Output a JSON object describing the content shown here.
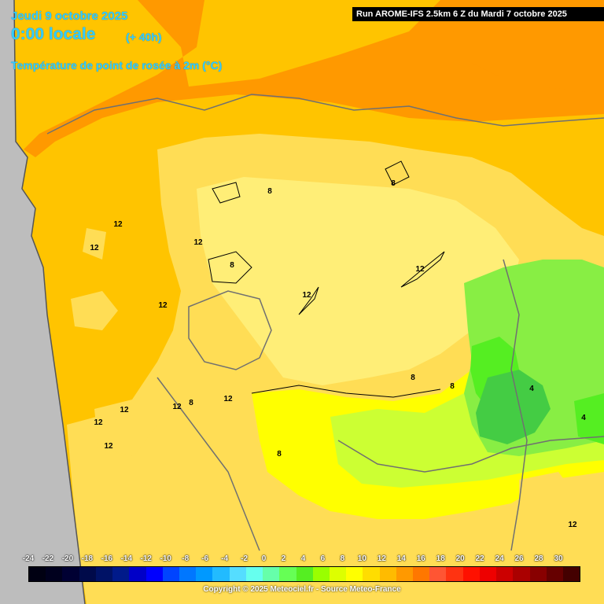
{
  "header": {
    "date_title": "Jeudi 9 octobre 2025",
    "local_time": "0:00 locale",
    "lead_time": "(+ 40h)",
    "parameter_title": "Température de point de rosée à 2m (°C)",
    "run_info": "Run AROME-IFS 2.5km 6 Z du Mardi 7 octobre 2025"
  },
  "legend": {
    "ticks": [
      "-24",
      "-22",
      "-20",
      "-18",
      "-16",
      "-14",
      "-12",
      "-10",
      "-8",
      "-6",
      "-4",
      "-2",
      "0",
      "2",
      "4",
      "6",
      "8",
      "10",
      "12",
      "14",
      "16",
      "18",
      "20",
      "22",
      "24",
      "26",
      "28",
      "30"
    ],
    "colors": [
      "#000012",
      "#00001e",
      "#000033",
      "#000a4a",
      "#001266",
      "#001a8a",
      "#0000c8",
      "#0000ff",
      "#0044ff",
      "#0077ff",
      "#0099ff",
      "#22bbff",
      "#55ddff",
      "#66ffee",
      "#66ffaa",
      "#66ff55",
      "#55ee22",
      "#99ff00",
      "#ddff00",
      "#ffff00",
      "#ffdd00",
      "#ffbb00",
      "#ff9900",
      "#ff7700",
      "#ff5533",
      "#ff3311",
      "#ff1100",
      "#ee0000",
      "#cc0000",
      "#aa0000",
      "#880000",
      "#660000",
      "#440000"
    ]
  },
  "map": {
    "colors": {
      "sea": "#bdbdbd",
      "orange_dark": "#ff9900",
      "orange": "#ffbb00",
      "gold": "#ffc400",
      "light_gold": "#ffdd55",
      "pale_yellow": "#ffee77",
      "yellow": "#ffff00",
      "yellow_green": "#ccff33",
      "green": "#88ee44",
      "bright_green": "#55ee22",
      "deep_green": "#44cc44"
    },
    "contour_labels": [
      "12",
      "12",
      "12",
      "12",
      "12",
      "12",
      "12",
      "12",
      "12",
      "12",
      "12",
      "12",
      "8",
      "8",
      "8",
      "8",
      "8",
      "8",
      "8",
      "4",
      "4"
    ]
  },
  "footer": {
    "copyright": "Copyright © 2025 Meteociel.fr - Source Meteo-France"
  }
}
